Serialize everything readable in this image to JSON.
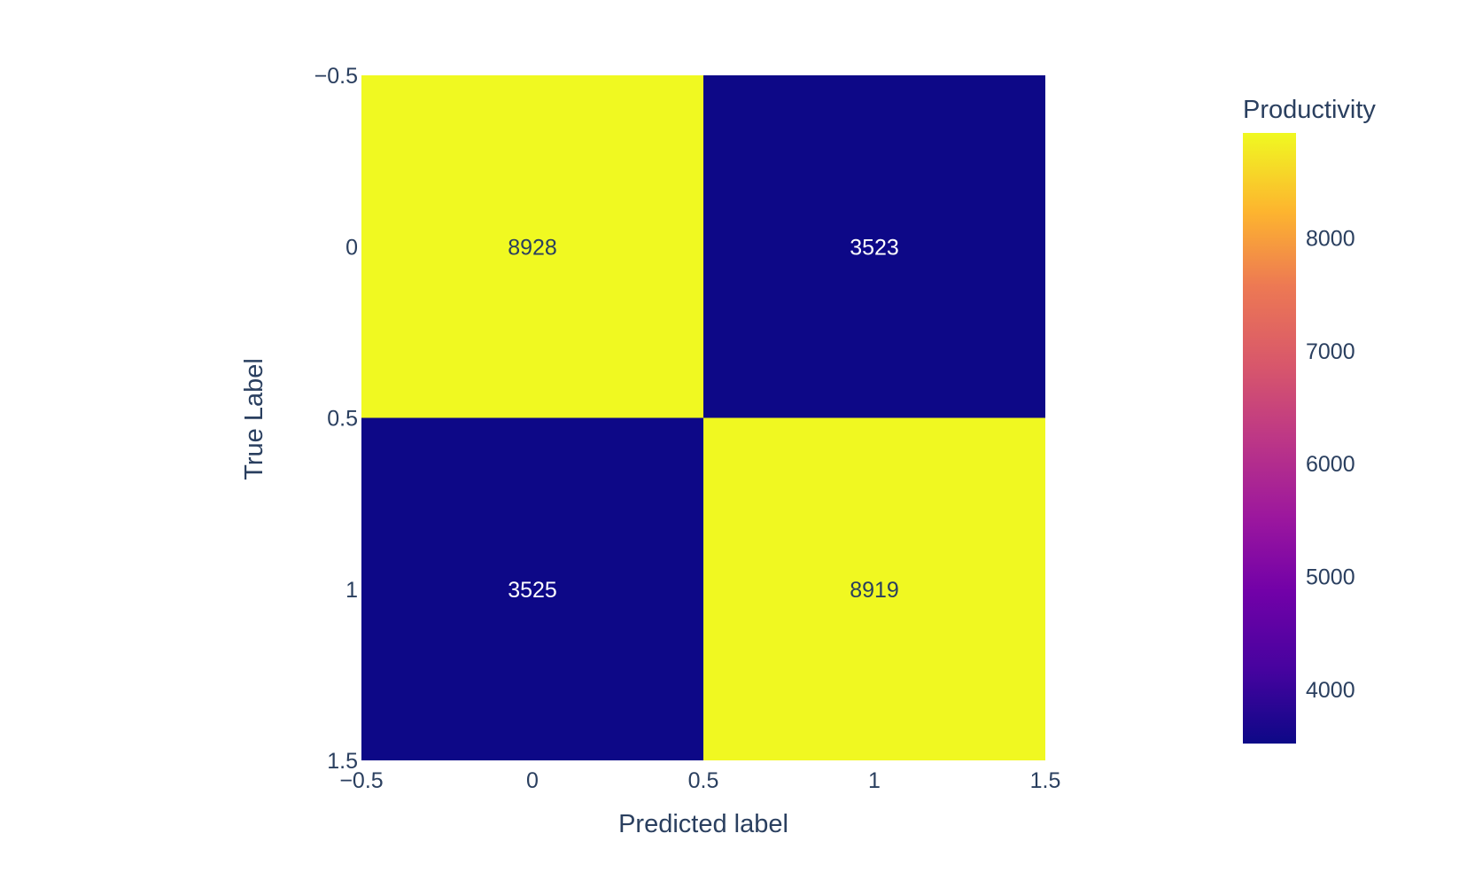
{
  "chart_data": {
    "type": "heatmap",
    "title": "",
    "xlabel": "Predicted label",
    "ylabel": "True Label",
    "x": [
      0,
      1
    ],
    "y": [
      0,
      1
    ],
    "z": [
      [
        8928,
        3523
      ],
      [
        3525,
        8919
      ]
    ],
    "cell_text": [
      [
        "8928",
        "3523"
      ],
      [
        "3525",
        "8919"
      ]
    ],
    "xlim": [
      -0.5,
      1.5
    ],
    "ylim": [
      -0.5,
      1.5
    ],
    "x_ticks": [
      "−0.5",
      "0",
      "0.5",
      "1",
      "1.5"
    ],
    "y_ticks": [
      "−0.5",
      "0",
      "0.5",
      "1",
      "1.5"
    ],
    "x_tick_values": [
      -0.5,
      0,
      0.5,
      1,
      1.5
    ],
    "y_tick_values": [
      -0.5,
      0,
      0.5,
      1,
      1.5
    ],
    "colorscale": "plasma",
    "colorbar": {
      "title": "Productivity",
      "range": [
        3523,
        8928
      ],
      "ticks": [
        "4000",
        "5000",
        "6000",
        "7000",
        "8000"
      ],
      "tick_values": [
        4000,
        5000,
        6000,
        7000,
        8000
      ]
    },
    "colors": {
      "low": "#0d0887",
      "high": "#f0f921",
      "dark_text": "#2a3f5f",
      "light_text": "#ffffff"
    }
  }
}
